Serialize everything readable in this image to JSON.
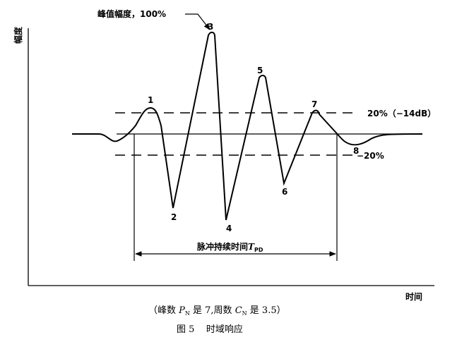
{
  "axes": {
    "y_label": "幅度",
    "x_label": "时间"
  },
  "peak_label": "峰值幅度，100%",
  "thresholds": {
    "upper": "20%（−14dB）",
    "lower": "−20%"
  },
  "peak_numbers": [
    "1",
    "2",
    "3",
    "4",
    "5",
    "6",
    "7",
    "8"
  ],
  "duration": {
    "label": "脉冲持续时间",
    "symbol": "T",
    "subscript": "PD"
  },
  "caption": {
    "note": {
      "open": "（峰数 ",
      "p": "P",
      "p_sub": "N",
      "mid": " 是 7,周数 ",
      "c": "C",
      "c_sub": "N",
      "end": " 是 3.5）"
    },
    "title": "图 5    时域响应"
  }
}
